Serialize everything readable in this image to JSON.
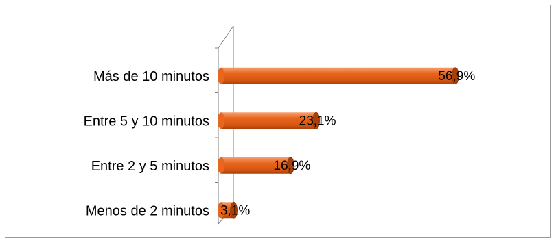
{
  "chart_data": {
    "type": "bar",
    "orientation": "horizontal",
    "style": "3d-cylinder",
    "categories": [
      "Más de 10 minutos",
      "Entre 5 y 10 minutos",
      "Entre 2 y 5 minutos",
      "Menos de 2 minutos"
    ],
    "values": [
      56.9,
      23.1,
      16.9,
      3.1
    ],
    "value_labels": [
      "56,9%",
      "23,1%",
      "16,9%",
      "3,1%"
    ],
    "xlim": [
      0,
      70
    ],
    "grid": false,
    "legend": "none",
    "colors": {
      "bar_fill": "#e8661e",
      "bar_dark": "#a8400a",
      "bar_light": "#f7a070",
      "axis": "#7f7f7f",
      "frame": "#9a9a9a"
    }
  }
}
